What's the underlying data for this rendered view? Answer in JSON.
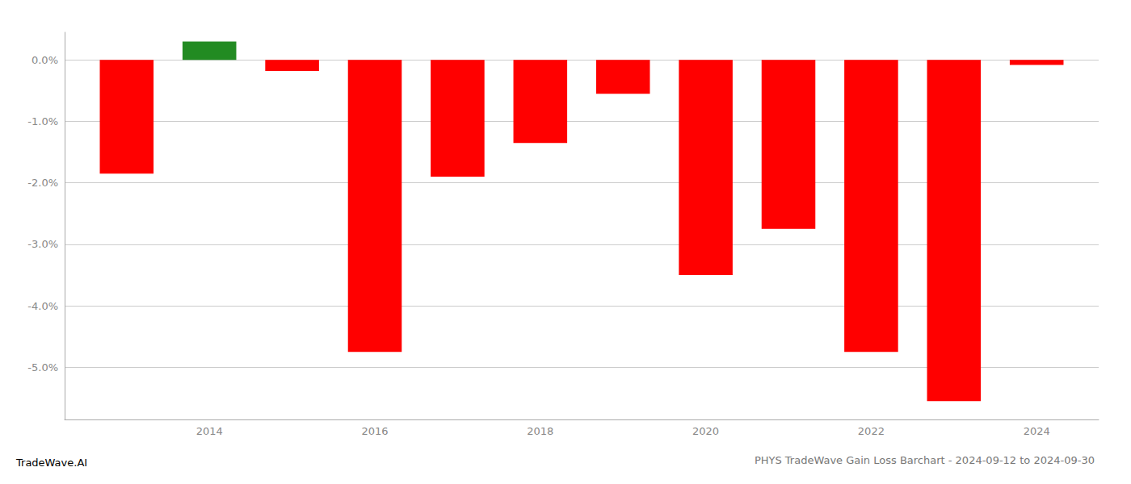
{
  "chart_data": {
    "type": "bar",
    "title": "PHYS TradeWave Gain Loss Barchart - 2024-09-12 to 2024-09-30",
    "annotations": [
      "TradeWave.AI"
    ],
    "x": [
      2013,
      2014,
      2015,
      2016,
      2017,
      2018,
      2019,
      2020,
      2021,
      2022,
      2023,
      2024
    ],
    "values": [
      -1.85,
      0.3,
      -0.18,
      -4.75,
      -1.9,
      -1.35,
      -0.55,
      -3.5,
      -2.75,
      -4.75,
      -5.55,
      -0.08
    ],
    "colors": [
      "#FF0000",
      "#228B22",
      "#FF0000",
      "#FF0000",
      "#FF0000",
      "#FF0000",
      "#FF0000",
      "#FF0000",
      "#FF0000",
      "#FF0000",
      "#FF0000",
      "#FF0000"
    ],
    "xlim": [
      2012.25,
      2024.75
    ],
    "xticks": [
      2014,
      2016,
      2018,
      2020,
      2022,
      2024
    ],
    "ylim": [
      -5.85,
      0.45
    ],
    "yticks": [
      {
        "value": 0.0,
        "label": "0.0%"
      },
      {
        "value": -1.0,
        "label": "-1.0%"
      },
      {
        "value": -2.0,
        "label": "-2.0%"
      },
      {
        "value": -3.0,
        "label": "-3.0%"
      },
      {
        "value": -4.0,
        "label": "-4.0%"
      },
      {
        "value": -5.0,
        "label": "-5.0%"
      }
    ],
    "grid": true
  }
}
